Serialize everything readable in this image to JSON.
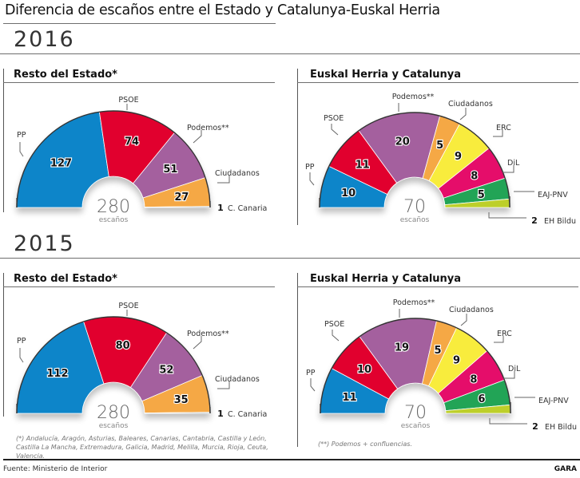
{
  "title": "Diferencia de escaños entre el Estado y Catalunya-Euskal Herria",
  "footer": {
    "source": "Fuente: Ministerio de Interior",
    "brand": "GARA"
  },
  "notes": {
    "resto": "(*) Andalucía, Aragón, Asturias, Baleares, Canarias, Cantabria, Castilla y León, Castilla La Mancha, Extremadura, Galicia, Madrid, Melilla, Murcia, Rioja, Ceuta, Valencia.",
    "euskal": "(**) Podemos + confluencias."
  },
  "years": [
    {
      "label": "2016"
    },
    {
      "label": "2015"
    }
  ],
  "colors": {
    "PP": "#0a85c9",
    "PSOE": "#e1002d",
    "Podemos": "#a4609e",
    "Ciudadanos": "#f5a845",
    "CCanaria": "#9fb3c4",
    "ERC": "#f8ec3d",
    "DiL": "#e50a6a",
    "EAJPNV": "#24a456",
    "EHBildu": "#bdcf2a"
  },
  "chart_data": [
    {
      "type": "pie",
      "subtype": "parliament-semicircle",
      "year": "2016",
      "title": "Resto del Estado*",
      "total": 280,
      "total_label": "escaños",
      "series": [
        {
          "name": "PP",
          "label": "PP",
          "value": 127,
          "color_key": "PP"
        },
        {
          "name": "PSOE",
          "label": "PSOE",
          "value": 74,
          "color_key": "PSOE"
        },
        {
          "name": "Podemos",
          "label": "Podemos**",
          "value": 51,
          "color_key": "Podemos"
        },
        {
          "name": "Ciudadanos",
          "label": "Ciudadanos",
          "value": 27,
          "color_key": "Ciudadanos"
        },
        {
          "name": "C. Canaria",
          "label": "C. Canaria",
          "value": 1,
          "color_key": "CCanaria"
        }
      ]
    },
    {
      "type": "pie",
      "subtype": "parliament-semicircle",
      "year": "2016",
      "title": "Euskal Herria y Catalunya",
      "total": 70,
      "total_label": "escaños",
      "series": [
        {
          "name": "PP",
          "label": "PP",
          "value": 10,
          "color_key": "PP"
        },
        {
          "name": "PSOE",
          "label": "PSOE",
          "value": 11,
          "color_key": "PSOE"
        },
        {
          "name": "Podemos",
          "label": "Podemos**",
          "value": 20,
          "color_key": "Podemos"
        },
        {
          "name": "Ciudadanos",
          "label": "Ciudadanos",
          "value": 5,
          "color_key": "Ciudadanos"
        },
        {
          "name": "ERC",
          "label": "ERC",
          "value": 9,
          "color_key": "ERC"
        },
        {
          "name": "DiL",
          "label": "DiL",
          "value": 8,
          "color_key": "DiL"
        },
        {
          "name": "EAJ-PNV",
          "label": "EAJ-PNV",
          "value": 5,
          "color_key": "EAJPNV"
        },
        {
          "name": "EH Bildu",
          "label": "EH Bildu",
          "value": 2,
          "color_key": "EHBildu"
        }
      ]
    },
    {
      "type": "pie",
      "subtype": "parliament-semicircle",
      "year": "2015",
      "title": "Resto del Estado*",
      "total": 280,
      "total_label": "escaños",
      "series": [
        {
          "name": "PP",
          "label": "PP",
          "value": 112,
          "color_key": "PP"
        },
        {
          "name": "PSOE",
          "label": "PSOE",
          "value": 80,
          "color_key": "PSOE"
        },
        {
          "name": "Podemos",
          "label": "Podemos**",
          "value": 52,
          "color_key": "Podemos"
        },
        {
          "name": "Ciudadanos",
          "label": "Ciudadanos",
          "value": 35,
          "color_key": "Ciudadanos"
        },
        {
          "name": "C. Canaria",
          "label": "C. Canaria",
          "value": 1,
          "color_key": "CCanaria"
        }
      ]
    },
    {
      "type": "pie",
      "subtype": "parliament-semicircle",
      "year": "2015",
      "title": "Euskal Herria y Catalunya",
      "total": 70,
      "total_label": "escaños",
      "series": [
        {
          "name": "PP",
          "label": "PP",
          "value": 11,
          "color_key": "PP"
        },
        {
          "name": "PSOE",
          "label": "PSOE",
          "value": 10,
          "color_key": "PSOE"
        },
        {
          "name": "Podemos",
          "label": "Podemos**",
          "value": 19,
          "color_key": "Podemos"
        },
        {
          "name": "Ciudadanos",
          "label": "Ciudadanos",
          "value": 5,
          "color_key": "Ciudadanos"
        },
        {
          "name": "ERC",
          "label": "ERC",
          "value": 9,
          "color_key": "ERC"
        },
        {
          "name": "DiL",
          "label": "DiL",
          "value": 8,
          "color_key": "DiL"
        },
        {
          "name": "EAJ-PNV",
          "label": "EAJ-PNV",
          "value": 6,
          "color_key": "EAJPNV"
        },
        {
          "name": "EH Bildu",
          "label": "EH Bildu",
          "value": 2,
          "color_key": "EHBildu"
        }
      ]
    }
  ]
}
